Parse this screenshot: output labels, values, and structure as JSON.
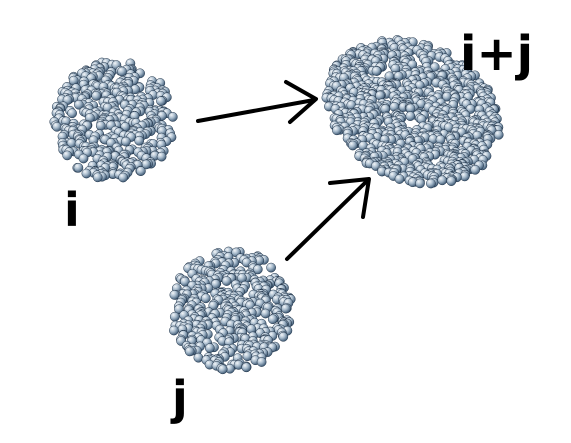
{
  "labels": {
    "cluster_i": "i",
    "cluster_j": "j",
    "merged": "i+j"
  },
  "colors": {
    "background": "#ffffff",
    "sphere_fill_dark": "#3f5f7f",
    "sphere_fill_light": "#e8eef4",
    "sphere_outline": "#1f3247",
    "arrow": "#000000",
    "label": "#000000"
  }
}
